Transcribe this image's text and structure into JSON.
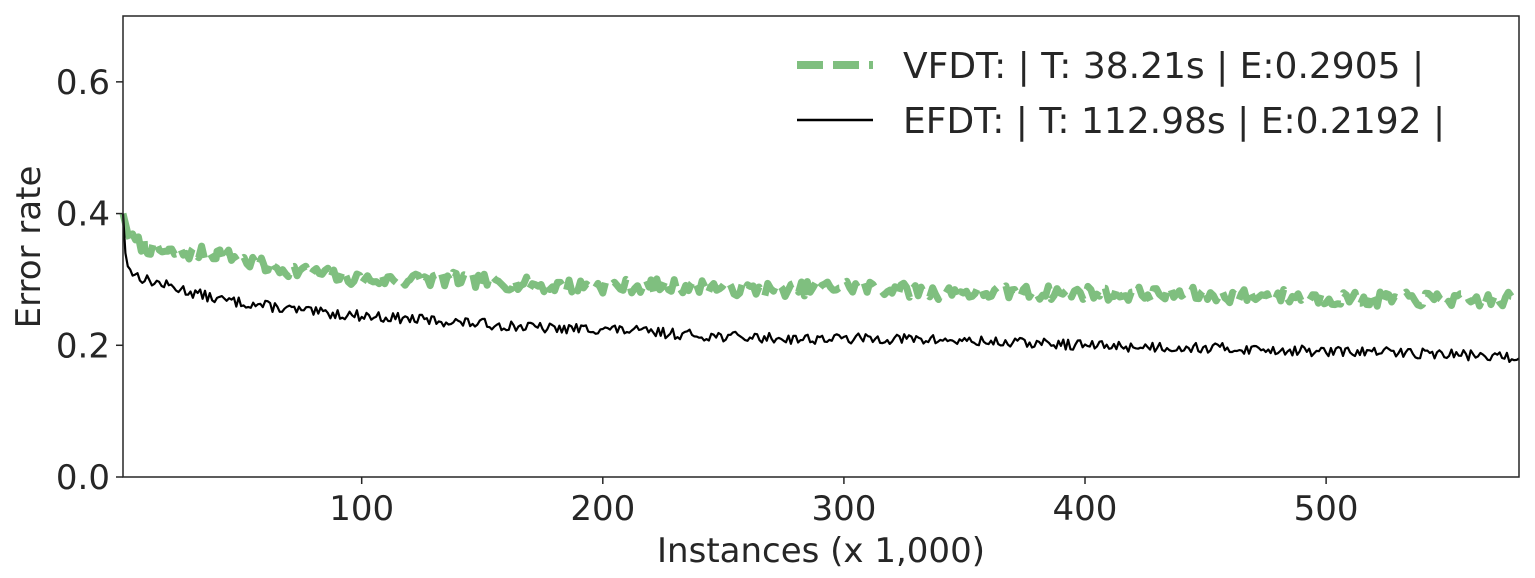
{
  "chart_data": {
    "type": "line",
    "xlabel": "Instances (x 1,000)",
    "ylabel": "Error rate",
    "xlim": [
      1,
      580
    ],
    "ylim": [
      0,
      0.7
    ],
    "xticks": [
      100,
      200,
      300,
      400,
      500
    ],
    "yticks": [
      0.0,
      0.2,
      0.4,
      0.6
    ],
    "xtick_labels": [
      "100",
      "200",
      "300",
      "400",
      "500"
    ],
    "ytick_labels": [
      "0.0",
      "0.2",
      "0.4",
      "0.6"
    ],
    "grid": false,
    "legend_position": "top-right",
    "series": [
      {
        "name": "VFDT: | T: 38.21s |  E:0.2905 |",
        "color": "#7fbf7f",
        "style": "dashed",
        "x": [
          1,
          3,
          5,
          10,
          20,
          30,
          40,
          50,
          60,
          80,
          100,
          120,
          140,
          160,
          180,
          200,
          220,
          240,
          260,
          280,
          300,
          320,
          340,
          360,
          380,
          400,
          420,
          440,
          460,
          480,
          500,
          520,
          540,
          560,
          580
        ],
        "y": [
          0.4,
          0.37,
          0.36,
          0.35,
          0.34,
          0.34,
          0.34,
          0.33,
          0.32,
          0.31,
          0.3,
          0.3,
          0.3,
          0.295,
          0.29,
          0.29,
          0.29,
          0.29,
          0.285,
          0.285,
          0.29,
          0.285,
          0.28,
          0.28,
          0.28,
          0.28,
          0.278,
          0.278,
          0.275,
          0.275,
          0.272,
          0.27,
          0.27,
          0.268,
          0.27
        ]
      },
      {
        "name": "EFDT: | T: 112.98s |  E:0.2192 |",
        "color": "#000000",
        "style": "solid",
        "x": [
          1,
          2,
          3,
          5,
          10,
          20,
          30,
          40,
          50,
          60,
          80,
          100,
          120,
          140,
          160,
          180,
          200,
          220,
          240,
          260,
          280,
          300,
          320,
          340,
          360,
          380,
          400,
          420,
          440,
          460,
          480,
          500,
          520,
          540,
          560,
          580
        ],
        "y": [
          0.4,
          0.34,
          0.32,
          0.31,
          0.3,
          0.29,
          0.28,
          0.27,
          0.265,
          0.26,
          0.25,
          0.245,
          0.24,
          0.235,
          0.23,
          0.225,
          0.225,
          0.22,
          0.215,
          0.212,
          0.21,
          0.21,
          0.21,
          0.208,
          0.205,
          0.203,
          0.2,
          0.198,
          0.197,
          0.195,
          0.193,
          0.19,
          0.19,
          0.188,
          0.185,
          0.18
        ]
      }
    ]
  }
}
